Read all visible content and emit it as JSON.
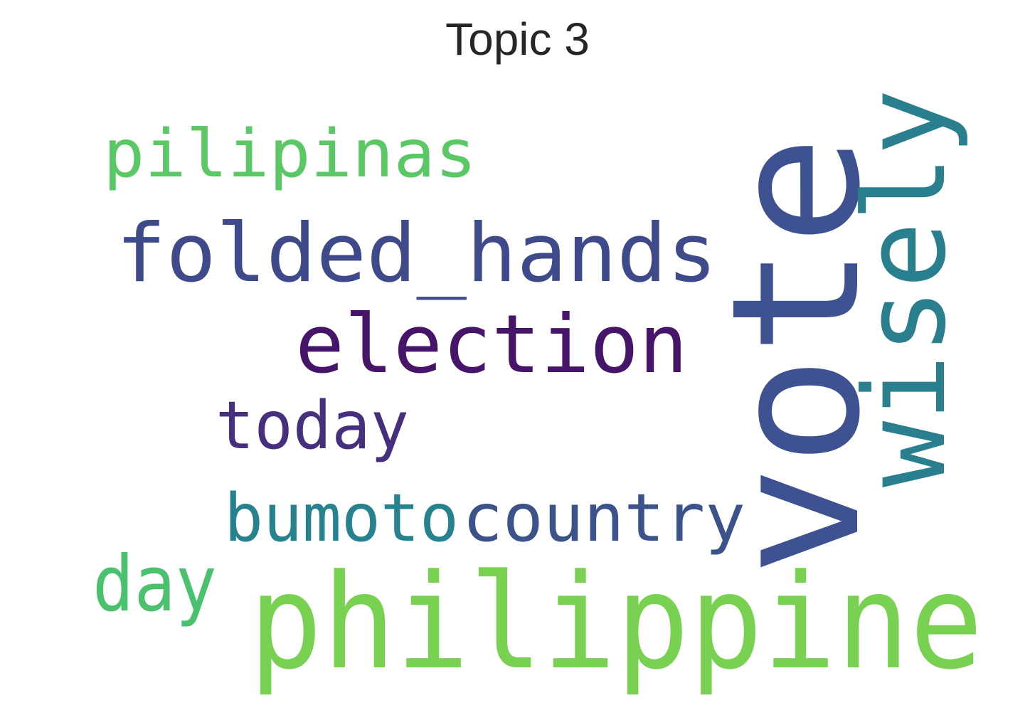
{
  "title": "Topic 3",
  "words": [
    {
      "text": "vote",
      "color": "#3e5190"
    },
    {
      "text": "philippine",
      "color": "#79d151"
    },
    {
      "text": "wisely",
      "color": "#2a7f8e"
    },
    {
      "text": "folded_hands",
      "color": "#3f4a8a"
    },
    {
      "text": "election",
      "color": "#46156a"
    },
    {
      "text": "pilipinas",
      "color": "#5ac864"
    },
    {
      "text": "today",
      "color": "#46307e"
    },
    {
      "text": "bumoto",
      "color": "#26828e"
    },
    {
      "text": "country",
      "color": "#3b528b"
    },
    {
      "text": "day",
      "color": "#4ac16d"
    }
  ]
}
